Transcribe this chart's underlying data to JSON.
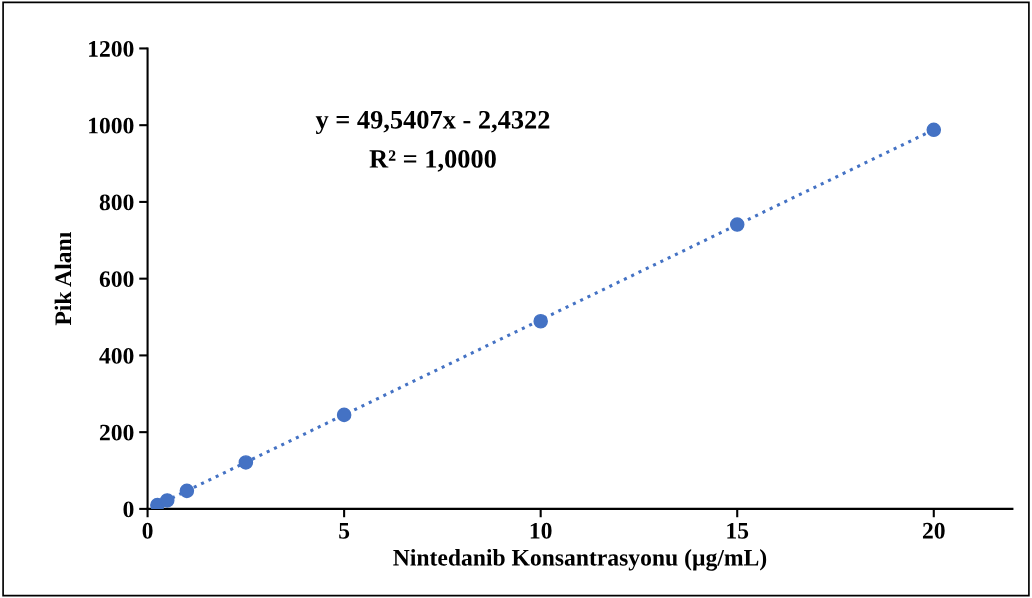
{
  "chart_data": {
    "type": "scatter",
    "xlabel": "Nintedanib Konsantrasyonu (µg/mL)",
    "ylabel": "Pik Alanı",
    "xlim": [
      0,
      22
    ],
    "ylim": [
      0,
      1200
    ],
    "xticks": [
      0,
      5,
      10,
      15,
      20
    ],
    "yticks": [
      0,
      200,
      400,
      600,
      800,
      1000,
      1200
    ],
    "grid": false,
    "legend": false,
    "series": [
      {
        "marker": "circle",
        "color": "#4472c4",
        "x": [
          0.25,
          0.5,
          1,
          2.5,
          5,
          10,
          15,
          20
        ],
        "values": [
          10,
          22,
          47,
          121,
          245,
          489,
          741,
          988
        ]
      },
      {
        "type": "line",
        "color": "#4472c4",
        "line_style": "dotted",
        "x": [
          0.25,
          20
        ],
        "values": [
          10,
          988
        ]
      }
    ],
    "annotations": [
      "y = 49,5407x - 2,4322",
      "R² = 1,0000"
    ]
  }
}
